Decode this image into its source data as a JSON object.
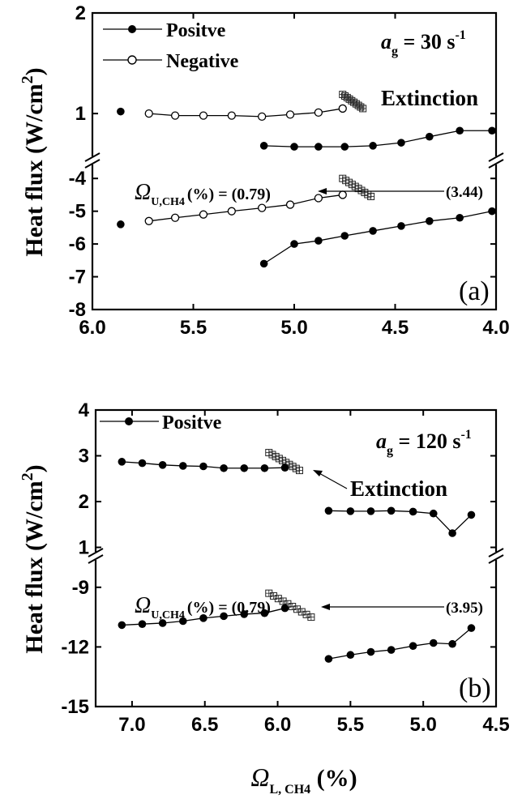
{
  "chart_data": [
    {
      "type": "line",
      "panel_label": "(a)",
      "ylabel": "Heat flux (W/cm",
      "ylabel_sup": "2",
      "ylabel_close": ")",
      "xlim": [
        6.0,
        4.0
      ],
      "x_ticks": [
        "6.0",
        "5.5",
        "5.0",
        "4.5",
        "4.0"
      ],
      "x_tick_values": [
        6.0,
        5.5,
        5.0,
        4.5,
        4.0
      ],
      "upper_ylim": [
        0.55,
        2.0
      ],
      "upper_y_ticks": [
        "1",
        "2"
      ],
      "upper_y_tick_values": [
        1,
        2
      ],
      "lower_ylim": [
        -8,
        -3.5
      ],
      "lower_y_ticks": [
        "-4",
        "-5",
        "-6",
        "-7",
        "-8"
      ],
      "lower_y_tick_values": [
        -4,
        -5,
        -6,
        -7,
        -8
      ],
      "rate_text": {
        "a": "a",
        "sub": "g",
        "value": " = 30 s",
        "sup": "-1"
      },
      "extinction_label": "Extinction",
      "omega_annotation": {
        "symbol": "Ω",
        "sub": "U,CH4",
        "text": "(%) = (0.79)",
        "end_text": "(3.44)"
      },
      "series": [
        {
          "name": "Positve",
          "marker": "filled",
          "segment": "upper",
          "x": [
            5.86
          ],
          "y": [
            1.02
          ]
        },
        {
          "name": "Positve",
          "marker": "filled",
          "segment": "upper",
          "x": [
            5.15,
            5.0,
            4.88,
            4.75,
            4.61,
            4.47,
            4.33,
            4.18,
            4.02
          ],
          "y": [
            0.68,
            0.67,
            0.67,
            0.67,
            0.68,
            0.71,
            0.77,
            0.83,
            0.83
          ]
        },
        {
          "name": "Negative",
          "marker": "open",
          "segment": "upper",
          "x": [
            5.72,
            5.59,
            5.45,
            5.31,
            5.16,
            5.02,
            4.88,
            4.76
          ],
          "y": [
            1.0,
            0.98,
            0.98,
            0.98,
            0.97,
            0.99,
            1.01,
            1.05
          ]
        },
        {
          "name": "Negative",
          "marker": "open",
          "segment": "lower",
          "x": [
            5.72,
            5.59,
            5.45,
            5.31,
            5.16,
            5.02,
            4.88,
            4.76
          ],
          "y": [
            -5.3,
            -5.2,
            -5.1,
            -5.0,
            -4.9,
            -4.8,
            -4.6,
            -4.5
          ]
        },
        {
          "name": "Positve",
          "marker": "filled",
          "segment": "lower",
          "x": [
            5.86
          ],
          "y": [
            -5.4
          ]
        },
        {
          "name": "Positve",
          "marker": "filled",
          "segment": "lower",
          "x": [
            5.15,
            5.0,
            4.88,
            4.75,
            4.61,
            4.47,
            4.33,
            4.18,
            4.02
          ],
          "y": [
            -6.6,
            -6.0,
            -5.9,
            -5.75,
            -5.6,
            -5.45,
            -5.3,
            -5.2,
            -5.0
          ]
        }
      ],
      "extinction_hatches": [
        {
          "segment": "upper",
          "from": [
            4.76,
            1.19
          ],
          "to": [
            4.66,
            1.05
          ]
        },
        {
          "segment": "lower",
          "from": [
            4.76,
            -4.0
          ],
          "to": [
            4.62,
            -4.55
          ]
        }
      ],
      "legend": [
        {
          "label": "Positve",
          "marker": "filled"
        },
        {
          "label": "Negative",
          "marker": "open"
        }
      ]
    },
    {
      "type": "line",
      "panel_label": "(b)",
      "ylabel": "Heat flux (W/cm",
      "ylabel_sup": "2",
      "ylabel_close": ")",
      "xlabel_symbol": "Ω",
      "xlabel_sub": "L, CH4",
      "xlabel_text": " (%)",
      "xlim": [
        7.25,
        4.5
      ],
      "x_ticks": [
        "7.0",
        "6.5",
        "6.0",
        "5.5",
        "5.0",
        "4.5"
      ],
      "x_tick_values": [
        7.0,
        6.5,
        6.0,
        5.5,
        5.0,
        4.5
      ],
      "upper_ylim": [
        0.85,
        4.0
      ],
      "upper_y_ticks": [
        "1",
        "2",
        "3",
        "4"
      ],
      "upper_y_tick_values": [
        1,
        2,
        3,
        4
      ],
      "lower_ylim": [
        -15,
        -7.5
      ],
      "lower_y_ticks": [
        "-9",
        "-12",
        "-15"
      ],
      "lower_y_tick_values": [
        -9,
        -12,
        -15
      ],
      "rate_text": {
        "a": "a",
        "sub": "g",
        "value": " = 120 s",
        "sup": "-1"
      },
      "extinction_label": "Extinction",
      "omega_annotation": {
        "symbol": "Ω",
        "sub": "U,CH4",
        "text": "(%) = (0.79)",
        "end_text": "(3.95)"
      },
      "series": [
        {
          "name": "Positve",
          "marker": "filled",
          "segment": "upper",
          "x": [
            7.07,
            6.93,
            6.79,
            6.65,
            6.51,
            6.37,
            6.23,
            6.09,
            5.95
          ],
          "y": [
            2.87,
            2.84,
            2.8,
            2.78,
            2.77,
            2.73,
            2.73,
            2.73,
            2.74
          ]
        },
        {
          "name": "Positve",
          "marker": "filled",
          "segment": "upper",
          "x": [
            5.65,
            5.5,
            5.36,
            5.22,
            5.07,
            4.93,
            4.8,
            4.67
          ],
          "y": [
            1.8,
            1.79,
            1.79,
            1.8,
            1.78,
            1.74,
            1.31,
            1.71
          ]
        },
        {
          "name": "Positve",
          "marker": "filled",
          "segment": "lower",
          "x": [
            7.07,
            6.93,
            6.79,
            6.65,
            6.51,
            6.37,
            6.23,
            6.09,
            5.95
          ],
          "y": [
            -10.9,
            -10.85,
            -10.8,
            -10.7,
            -10.55,
            -10.45,
            -10.35,
            -10.3,
            -10.05
          ]
        },
        {
          "name": "Positve",
          "marker": "filled",
          "segment": "lower",
          "x": [
            5.65,
            5.5,
            5.36,
            5.22,
            5.07,
            4.93,
            4.8,
            4.67
          ],
          "y": [
            -12.6,
            -12.4,
            -12.25,
            -12.15,
            -11.95,
            -11.8,
            -11.85,
            -11.05
          ]
        }
      ],
      "extinction_hatches": [
        {
          "segment": "upper",
          "from": [
            6.06,
            3.07
          ],
          "to": [
            5.85,
            2.68
          ]
        },
        {
          "segment": "lower",
          "from": [
            6.06,
            -9.3
          ],
          "to": [
            5.77,
            -10.5
          ]
        }
      ],
      "legend": [
        {
          "label": "Positve",
          "marker": "filled"
        }
      ]
    }
  ]
}
